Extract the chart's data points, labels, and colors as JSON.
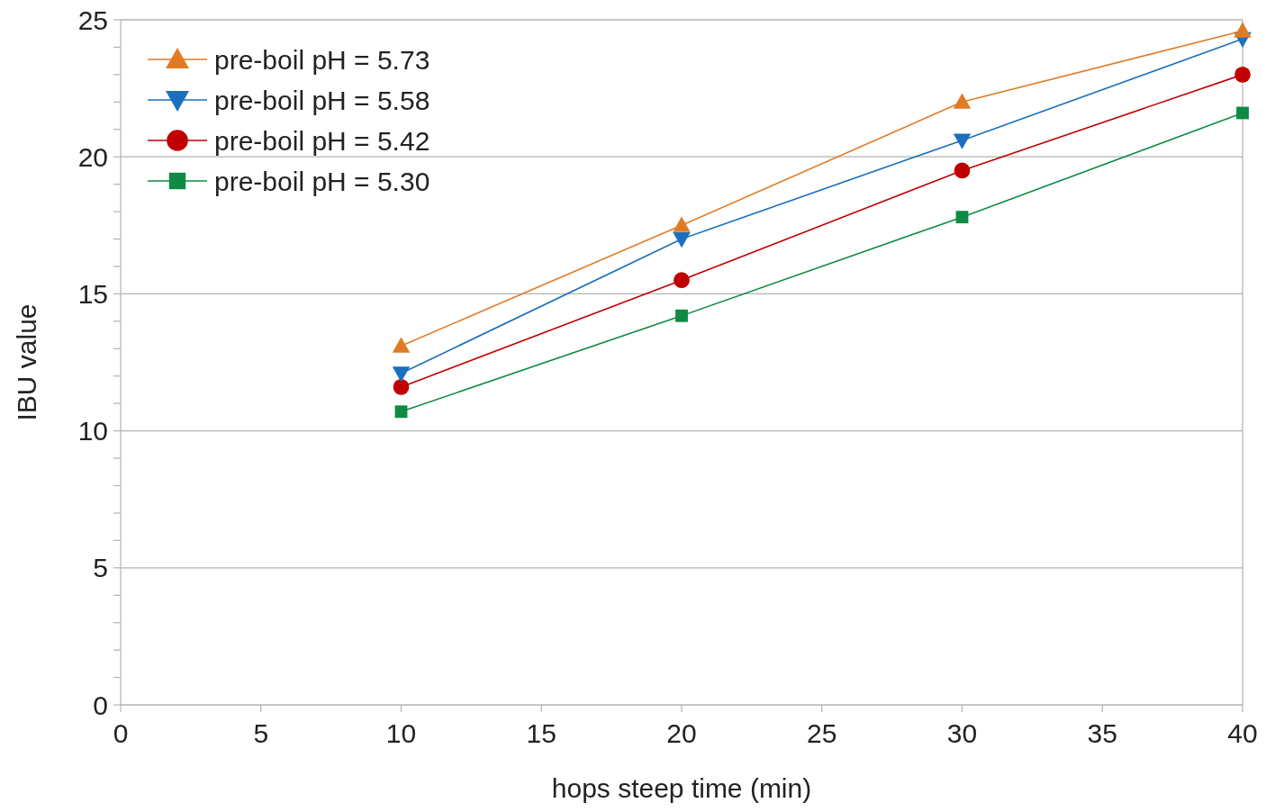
{
  "chart_data": {
    "type": "line",
    "xlabel": "hops steep time (min)",
    "ylabel": "IBU value",
    "x": [
      10,
      20,
      30,
      40
    ],
    "series": [
      {
        "name": "pre-boil pH = 5.73",
        "color": "#e07b24",
        "marker": "triangle",
        "values": [
          13.1,
          17.5,
          22.0,
          24.6
        ]
      },
      {
        "name": "pre-boil pH = 5.58",
        "color": "#1c6fbd",
        "marker": "triangle-down",
        "values": [
          12.1,
          17.0,
          20.6,
          24.3
        ]
      },
      {
        "name": "pre-boil pH = 5.42",
        "color": "#c00000",
        "marker": "circle",
        "values": [
          11.6,
          15.5,
          19.5,
          23.0
        ]
      },
      {
        "name": "pre-boil pH = 5.30",
        "color": "#0e8a44",
        "marker": "square",
        "values": [
          10.7,
          14.2,
          17.8,
          21.6
        ]
      }
    ],
    "xlim": [
      0,
      40
    ],
    "xticks": [
      0,
      5,
      10,
      15,
      20,
      25,
      30,
      35,
      40
    ],
    "ylim": [
      0,
      25
    ],
    "yticks": [
      0,
      {
        "value": 1,
        "label": null
      },
      {
        "value": 2,
        "label": null
      },
      {
        "value": 3,
        "label": null
      },
      {
        "value": 4,
        "label": null
      },
      5,
      {
        "value": 6,
        "label": null
      },
      {
        "value": 7,
        "label": null
      },
      {
        "value": 8,
        "label": null
      },
      {
        "value": 9,
        "label": null
      },
      10,
      {
        "value": 11,
        "label": null
      },
      {
        "value": 12,
        "label": null
      },
      {
        "value": 13,
        "label": null
      },
      {
        "value": 14,
        "label": null
      },
      15,
      {
        "value": 16,
        "label": null
      },
      {
        "value": 17,
        "label": null
      },
      {
        "value": 18,
        "label": null
      },
      {
        "value": 19,
        "label": null
      },
      20,
      {
        "value": 21,
        "label": null
      },
      {
        "value": 22,
        "label": null
      },
      {
        "value": 23,
        "label": null
      },
      {
        "value": 24,
        "label": null
      },
      25
    ],
    "grid": "y",
    "legend": "top left",
    "line_style": "solid"
  }
}
